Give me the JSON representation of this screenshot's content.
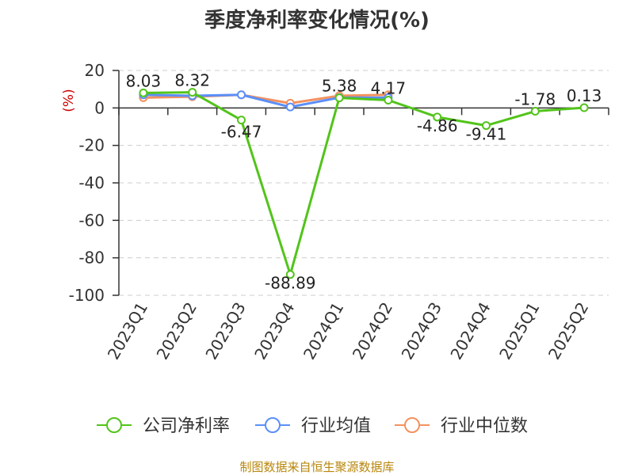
{
  "chart_data": {
    "type": "line",
    "title": "季度净利率变化情况(%)",
    "ylabel": "(%)",
    "ylim": [
      -100,
      20
    ],
    "yticks": [
      20,
      0,
      -20,
      -40,
      -60,
      -80,
      -100
    ],
    "grid": true,
    "legend_position": "bottom",
    "categories": [
      "2023Q1",
      "2023Q2",
      "2023Q3",
      "2023Q4",
      "2024Q1",
      "2024Q2",
      "2024Q3",
      "2024Q4",
      "2025Q1",
      "2025Q2"
    ],
    "series": [
      {
        "name": "公司净利率",
        "color": "#52c41a",
        "values": [
          8.03,
          8.32,
          -6.47,
          -88.89,
          5.38,
          4.17,
          -4.86,
          -9.41,
          -1.78,
          0.13
        ],
        "labels": [
          "8.03",
          "8.32",
          "-6.47",
          "-88.89",
          "5.38",
          "4.17",
          "-4.86",
          "-9.41",
          "-1.78",
          "0.13"
        ]
      },
      {
        "name": "行业均值",
        "color": "#5b8ff9",
        "values": [
          7.0,
          6.5,
          7.0,
          0.5,
          5.5,
          5.5,
          null,
          null,
          null,
          null
        ]
      },
      {
        "name": "行业中位数",
        "color": "#f4915e",
        "values": [
          5.5,
          6.0,
          7.0,
          2.5,
          6.5,
          7.0,
          null,
          null,
          null,
          null
        ]
      }
    ]
  },
  "footer": {
    "source": "制图数据来自恒生聚源数据库"
  }
}
